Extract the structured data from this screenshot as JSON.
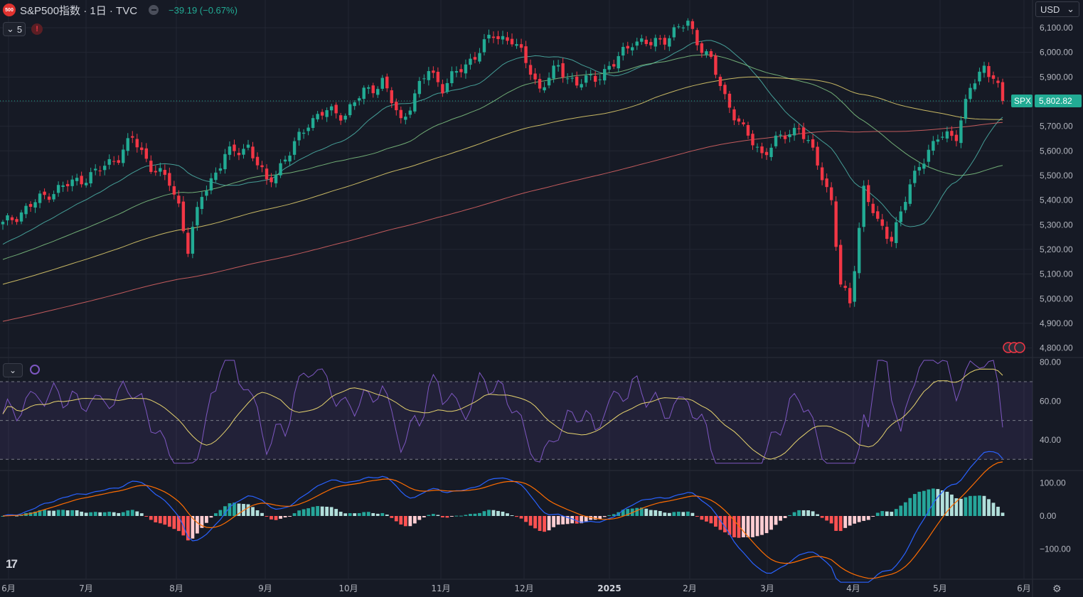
{
  "header": {
    "logo_text": "500",
    "symbol_title": "S&P500指数 · 1日 · TVC",
    "change_text": "−39.19 (−0.67%)",
    "indicator_count": "5",
    "warning_icon": "!"
  },
  "currency": {
    "label": "USD",
    "chevron": "⌄"
  },
  "price_tag": {
    "symbol": "SPX",
    "value": "5,802.82",
    "color": "#22ab94"
  },
  "colors": {
    "background": "#161a25",
    "up": "#22ab94",
    "down": "#f23645",
    "ma20": "#4db6ac",
    "ma50": "#81c784",
    "ma100": "#e6d36e",
    "ma200": "#e06666",
    "rsi": "#7e57c2",
    "rsi_ma": "#e6d36e",
    "macd": "#2962ff",
    "signal": "#ff6d00"
  },
  "chart_data": {
    "type": "candlestick",
    "price_axis": {
      "ticks": [
        6100,
        6000,
        5900,
        5800,
        5700,
        5600,
        5500,
        5400,
        5300,
        5200,
        5100,
        5000,
        4900,
        4800
      ],
      "tick_labels": [
        "6,100.00",
        "6,000.00",
        "5,900.00",
        "5,800.00",
        "5,700.00",
        "5,600.00",
        "5,500.00",
        "5,400.00",
        "5,300.00",
        "5,200.00",
        "5,100.00",
        "5,000.00",
        "4,900.00",
        "4,800.00"
      ]
    },
    "x_axis": {
      "labels": [
        "6月",
        "7月",
        "8月",
        "9月",
        "10月",
        "11月",
        "12月",
        "2025",
        "2月",
        "3月",
        "4月",
        "5月",
        "6月"
      ]
    },
    "close_anchors": [
      [
        0,
        5300
      ],
      [
        10,
        5430
      ],
      [
        20,
        5510
      ],
      [
        25,
        5580
      ],
      [
        28,
        5650
      ],
      [
        32,
        5540
      ],
      [
        36,
        5470
      ],
      [
        38,
        5380
      ],
      [
        40,
        5200
      ],
      [
        43,
        5420
      ],
      [
        48,
        5580
      ],
      [
        53,
        5620
      ],
      [
        57,
        5470
      ],
      [
        62,
        5590
      ],
      [
        66,
        5720
      ],
      [
        70,
        5760
      ],
      [
        74,
        5750
      ],
      [
        78,
        5840
      ],
      [
        82,
        5880
      ],
      [
        86,
        5720
      ],
      [
        92,
        5930
      ],
      [
        95,
        5860
      ],
      [
        100,
        5950
      ],
      [
        106,
        6070
      ],
      [
        110,
        6050
      ],
      [
        114,
        5930
      ],
      [
        116,
        5850
      ],
      [
        120,
        5940
      ],
      [
        124,
        5870
      ],
      [
        128,
        5900
      ],
      [
        132,
        5950
      ],
      [
        136,
        6050
      ],
      [
        140,
        6030
      ],
      [
        144,
        6070
      ],
      [
        148,
        6120
      ],
      [
        150,
        6050
      ],
      [
        153,
        5960
      ],
      [
        156,
        5820
      ],
      [
        160,
        5680
      ],
      [
        164,
        5590
      ],
      [
        168,
        5650
      ],
      [
        172,
        5700
      ],
      [
        176,
        5550
      ],
      [
        179,
        5400
      ],
      [
        181,
        5050
      ],
      [
        183,
        4980
      ],
      [
        186,
        5450
      ],
      [
        189,
        5300
      ],
      [
        192,
        5250
      ],
      [
        195,
        5400
      ],
      [
        198,
        5550
      ],
      [
        202,
        5650
      ],
      [
        206,
        5670
      ],
      [
        209,
        5850
      ],
      [
        212,
        5940
      ],
      [
        214,
        5910
      ],
      [
        216,
        5802.82
      ]
    ],
    "moving_averages": [
      {
        "name": "MA20",
        "period": 20
      },
      {
        "name": "MA50",
        "period": 50
      },
      {
        "name": "MA100",
        "period": 100
      },
      {
        "name": "MA200",
        "period": 200
      }
    ],
    "rsi_panel": {
      "ticks": [
        80,
        60,
        40
      ],
      "tick_labels": [
        "80.00",
        "60.00",
        "40.00"
      ],
      "band": [
        30,
        70
      ],
      "mid": 50
    },
    "macd_panel": {
      "ticks": [
        100,
        0,
        -100
      ],
      "tick_labels": [
        "100.00",
        "0.00",
        "−100.00"
      ]
    }
  }
}
